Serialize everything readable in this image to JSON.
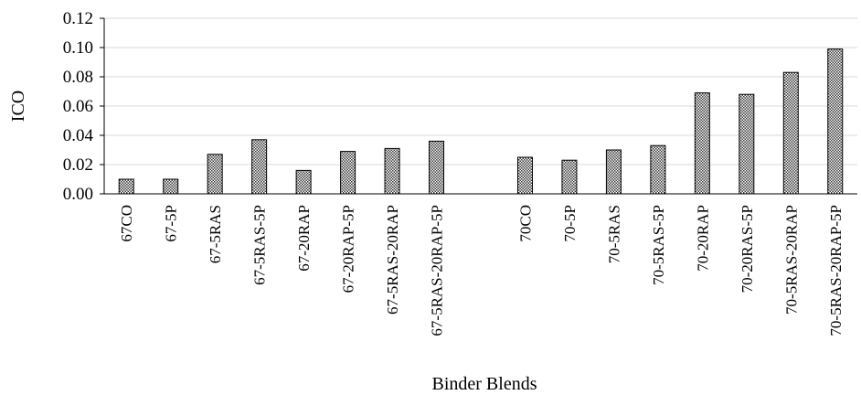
{
  "chart_data": {
    "type": "bar",
    "title": "",
    "xlabel": "Binder Blends",
    "ylabel": "ICO",
    "ylim": [
      0,
      0.12
    ],
    "yticks": [
      "0.00",
      "0.02",
      "0.04",
      "0.06",
      "0.08",
      "0.10",
      "0.12"
    ],
    "grid": true,
    "legend": "none",
    "bar_fill": "crosshatch",
    "categories": [
      "67CO",
      "67-5P",
      "67-5RAS",
      "67-5RAS-5P",
      "67-20RAP",
      "67-20RAP-5P",
      "67-5RAS-20RAP",
      "67-5RAS-20RAP-5P",
      "70CO",
      "70-5P",
      "70-5RAS",
      "70-5RAS-5P",
      "70-20RAP",
      "70-20RAS-5P",
      "70-5RAS-20RAP",
      "70-5RAS-20RAP-5P"
    ],
    "values": [
      0.01,
      0.01,
      0.027,
      0.037,
      0.016,
      0.029,
      0.031,
      0.036,
      0.025,
      0.023,
      0.03,
      0.033,
      0.069,
      0.068,
      0.083,
      0.099
    ],
    "colors": {
      "bar_edge": "#000000",
      "grid": "#d9d9d9",
      "axis": "#000000"
    }
  }
}
